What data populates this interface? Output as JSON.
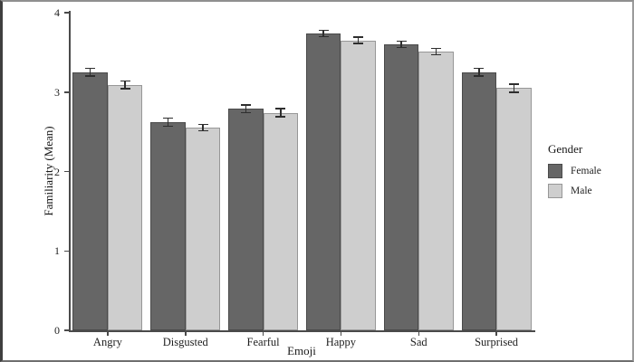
{
  "chart_data": {
    "type": "bar",
    "title": "",
    "xlabel": "Emoji",
    "ylabel": "Familiarity (Mean)",
    "categories": [
      "Angry",
      "Disgusted",
      "Fearful",
      "Happy",
      "Sad",
      "Surprised"
    ],
    "series": [
      {
        "name": "Female",
        "color": "#666666",
        "border_color": "#4a4a4a",
        "values": [
          3.25,
          2.62,
          2.79,
          3.74,
          3.6,
          3.25
        ],
        "errors": [
          0.05,
          0.05,
          0.05,
          0.04,
          0.04,
          0.05
        ]
      },
      {
        "name": "Male",
        "color": "#cecece",
        "border_color": "#979797",
        "values": [
          3.09,
          2.55,
          2.74,
          3.65,
          3.51,
          3.05
        ],
        "errors": [
          0.05,
          0.04,
          0.05,
          0.04,
          0.04,
          0.05
        ]
      }
    ],
    "ylim": [
      0,
      4
    ],
    "yticks": [
      0,
      1,
      2,
      3,
      4
    ],
    "legend_title": "Gender",
    "legend_position": "right",
    "grid": false,
    "error_bars": true,
    "axis_color": "#4a4a4a",
    "errorbar_color": "#2e2e2e",
    "background_color": "#ffffff"
  }
}
